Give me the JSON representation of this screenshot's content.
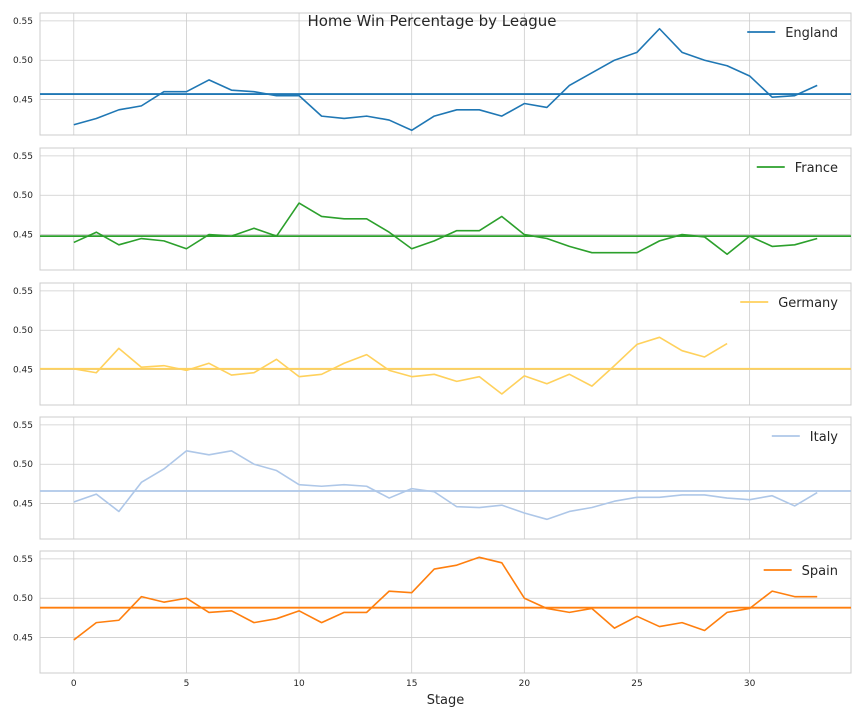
{
  "chart_data": {
    "type": "line",
    "title": "Home Win Percentage by League",
    "xlabel": "Stage",
    "ylabel": "",
    "xlim": [
      -1.5,
      34.5
    ],
    "ylim": [
      0.405,
      0.56
    ],
    "xticks": [
      0,
      5,
      10,
      15,
      20,
      25,
      30
    ],
    "yticks": [
      0.45,
      0.5,
      0.55
    ],
    "ytick_labels": [
      "0.45",
      "0.50",
      "0.55"
    ],
    "grid": true,
    "legend_position": "top-right",
    "series": [
      {
        "name": "England",
        "color": "#1f77b4",
        "mean": 0.457,
        "values": [
          0.418,
          0.426,
          0.437,
          0.442,
          0.46,
          0.46,
          0.475,
          0.462,
          0.46,
          0.455,
          0.455,
          0.429,
          0.426,
          0.429,
          0.424,
          0.411,
          0.429,
          0.437,
          0.437,
          0.429,
          0.445,
          0.44,
          0.468,
          0.484,
          0.5,
          0.51,
          0.54,
          0.51,
          0.5,
          0.493,
          0.48,
          0.453,
          0.455,
          0.468
        ]
      },
      {
        "name": "France",
        "color": "#2ca02c",
        "mean": 0.448,
        "values": [
          0.44,
          0.453,
          0.437,
          0.445,
          0.442,
          0.432,
          0.45,
          0.448,
          0.458,
          0.448,
          0.49,
          0.473,
          0.47,
          0.47,
          0.453,
          0.432,
          0.442,
          0.455,
          0.455,
          0.473,
          0.45,
          0.445,
          0.435,
          0.427,
          0.427,
          0.427,
          0.442,
          0.45,
          0.447,
          0.425,
          0.448,
          0.435,
          0.437,
          0.445
        ]
      },
      {
        "name": "Germany",
        "color": "#ffd15c",
        "mean": 0.451,
        "values": [
          0.451,
          0.446,
          0.477,
          0.453,
          0.455,
          0.449,
          0.458,
          0.443,
          0.446,
          0.463,
          0.441,
          0.444,
          0.458,
          0.469,
          0.449,
          0.441,
          0.444,
          0.435,
          0.441,
          0.419,
          0.442,
          0.432,
          0.444,
          0.429,
          0.455,
          0.482,
          0.491,
          0.474,
          0.466,
          0.483
        ]
      },
      {
        "name": "Italy",
        "color": "#aec7e8",
        "mean": 0.466,
        "values": [
          0.452,
          0.462,
          0.44,
          0.477,
          0.494,
          0.517,
          0.512,
          0.517,
          0.5,
          0.492,
          0.474,
          0.472,
          0.474,
          0.472,
          0.457,
          0.469,
          0.465,
          0.446,
          0.445,
          0.448,
          0.438,
          0.43,
          0.44,
          0.445,
          0.453,
          0.458,
          0.458,
          0.461,
          0.461,
          0.457,
          0.455,
          0.46,
          0.447,
          0.464
        ]
      },
      {
        "name": "Spain",
        "color": "#ff7f0e",
        "mean": 0.488,
        "values": [
          0.447,
          0.469,
          0.472,
          0.502,
          0.495,
          0.5,
          0.482,
          0.484,
          0.469,
          0.474,
          0.484,
          0.469,
          0.482,
          0.482,
          0.509,
          0.507,
          0.537,
          0.542,
          0.552,
          0.545,
          0.5,
          0.487,
          0.482,
          0.487,
          0.462,
          0.477,
          0.464,
          0.469,
          0.459,
          0.482,
          0.487,
          0.509,
          0.502,
          0.502
        ]
      }
    ]
  }
}
